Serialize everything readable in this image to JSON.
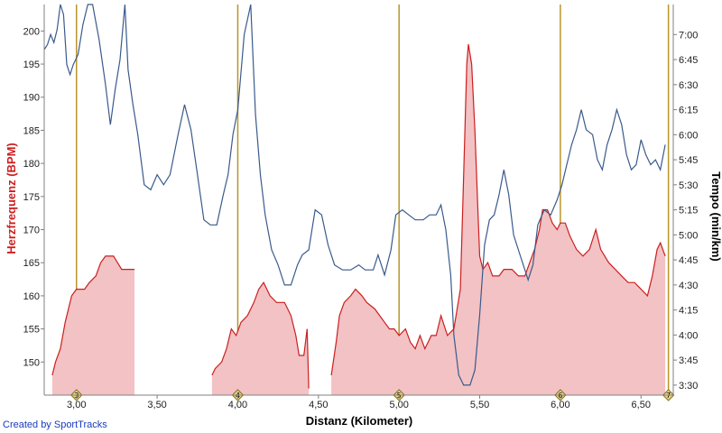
{
  "credit": "Created by SportTracks",
  "chart_data": {
    "type": "line",
    "title": "",
    "xlabel": "Distanz (Kilometer)",
    "ylabel_left": "Herzfrequenz (BPM)",
    "ylabel_right": "Tempo (min/km)",
    "xlim": [
      2.8,
      6.7
    ],
    "ylim_left": [
      145,
      204
    ],
    "ylim_right": [
      3.4,
      7.3
    ],
    "grid": false,
    "x_ticks": [
      {
        "value": 3.0,
        "label": "3,00"
      },
      {
        "value": 3.5,
        "label": "3,50"
      },
      {
        "value": 4.0,
        "label": "4,00"
      },
      {
        "value": 4.5,
        "label": "4,50"
      },
      {
        "value": 5.0,
        "label": "5,00"
      },
      {
        "value": 5.5,
        "label": "5,50"
      },
      {
        "value": 6.0,
        "label": "6,00"
      },
      {
        "value": 6.5,
        "label": "6,50"
      }
    ],
    "y_left_ticks": [
      150,
      155,
      160,
      165,
      170,
      175,
      180,
      185,
      190,
      195,
      200
    ],
    "y_right_ticks": [
      {
        "value": 3.5,
        "label": "3:30"
      },
      {
        "value": 3.75,
        "label": "3:45"
      },
      {
        "value": 4.0,
        "label": "4:00"
      },
      {
        "value": 4.25,
        "label": "4:15"
      },
      {
        "value": 4.5,
        "label": "4:30"
      },
      {
        "value": 4.75,
        "label": "4:45"
      },
      {
        "value": 5.0,
        "label": "5:00"
      },
      {
        "value": 5.25,
        "label": "5:15"
      },
      {
        "value": 5.5,
        "label": "5:30"
      },
      {
        "value": 5.75,
        "label": "5:45"
      },
      {
        "value": 6.0,
        "label": "6:00"
      },
      {
        "value": 6.25,
        "label": "6:15"
      },
      {
        "value": 6.5,
        "label": "6:30"
      },
      {
        "value": 6.75,
        "label": "6:45"
      },
      {
        "value": 7.0,
        "label": "7:00"
      }
    ],
    "laps": [
      {
        "x": 3.0,
        "label": "3"
      },
      {
        "x": 4.0,
        "label": "4"
      },
      {
        "x": 5.0,
        "label": "5"
      },
      {
        "x": 6.0,
        "label": "6"
      },
      {
        "x": 6.67,
        "label": "7"
      }
    ],
    "colors": {
      "heart_rate": "#cc1f1f",
      "heart_rate_fill": "#f2c2c4",
      "pace": "#3a5a8c",
      "lap_line": "#b8942a"
    },
    "series": [
      {
        "name": "Herzfrequenz (BPM)",
        "axis": "left",
        "segments": [
          [
            [
              2.85,
              148
            ],
            [
              2.87,
              150
            ],
            [
              2.9,
              152
            ],
            [
              2.93,
              156
            ],
            [
              2.95,
              158
            ],
            [
              2.97,
              160
            ],
            [
              3.0,
              161
            ],
            [
              3.05,
              161
            ],
            [
              3.08,
              162
            ],
            [
              3.12,
              163
            ],
            [
              3.15,
              165
            ],
            [
              3.18,
              166
            ],
            [
              3.23,
              166
            ],
            [
              3.28,
              164
            ],
            [
              3.36,
              164
            ]
          ],
          [
            [
              3.84,
              148
            ],
            [
              3.86,
              149
            ],
            [
              3.9,
              150
            ],
            [
              3.93,
              152
            ],
            [
              3.96,
              155
            ],
            [
              3.99,
              154
            ],
            [
              4.02,
              156
            ],
            [
              4.06,
              157
            ],
            [
              4.1,
              159
            ],
            [
              4.13,
              161
            ],
            [
              4.16,
              162
            ],
            [
              4.2,
              160
            ],
            [
              4.24,
              159
            ],
            [
              4.29,
              159
            ],
            [
              4.33,
              157
            ],
            [
              4.36,
              154
            ],
            [
              4.38,
              151
            ],
            [
              4.41,
              151
            ],
            [
              4.43,
              155
            ],
            [
              4.44,
              146
            ]
          ],
          [
            [
              4.58,
              148
            ],
            [
              4.61,
              153
            ],
            [
              4.63,
              157
            ],
            [
              4.66,
              159
            ],
            [
              4.7,
              160
            ],
            [
              4.73,
              161
            ],
            [
              4.77,
              160
            ],
            [
              4.8,
              159
            ],
            [
              4.85,
              158
            ],
            [
              4.88,
              157
            ],
            [
              4.91,
              156
            ],
            [
              4.94,
              155
            ],
            [
              4.97,
              155
            ],
            [
              5.0,
              154
            ],
            [
              5.04,
              155
            ],
            [
              5.07,
              153
            ],
            [
              5.1,
              152
            ],
            [
              5.13,
              154
            ],
            [
              5.16,
              152
            ],
            [
              5.2,
              154
            ],
            [
              5.23,
              154
            ],
            [
              5.26,
              157
            ],
            [
              5.3,
              154
            ],
            [
              5.34,
              155
            ],
            [
              5.38,
              161
            ],
            [
              5.4,
              178
            ],
            [
              5.42,
              195
            ],
            [
              5.43,
              198
            ],
            [
              5.45,
              195
            ],
            [
              5.47,
              185
            ],
            [
              5.49,
              172
            ],
            [
              5.5,
              166
            ],
            [
              5.52,
              164
            ],
            [
              5.55,
              165
            ],
            [
              5.58,
              163
            ],
            [
              5.62,
              163
            ],
            [
              5.65,
              164
            ],
            [
              5.7,
              164
            ],
            [
              5.74,
              163
            ],
            [
              5.78,
              163
            ],
            [
              5.81,
              165
            ],
            [
              5.84,
              167
            ],
            [
              5.87,
              170
            ],
            [
              5.89,
              173
            ],
            [
              5.92,
              173
            ],
            [
              5.95,
              171
            ],
            [
              5.98,
              170
            ],
            [
              6.0,
              171
            ],
            [
              6.03,
              171
            ],
            [
              6.06,
              169
            ],
            [
              6.1,
              167
            ],
            [
              6.14,
              166
            ],
            [
              6.18,
              167
            ],
            [
              6.22,
              170
            ],
            [
              6.25,
              167
            ],
            [
              6.3,
              165
            ],
            [
              6.34,
              164
            ],
            [
              6.38,
              163
            ],
            [
              6.42,
              162
            ],
            [
              6.46,
              162
            ],
            [
              6.5,
              161
            ],
            [
              6.54,
              160
            ],
            [
              6.57,
              163
            ],
            [
              6.6,
              167
            ],
            [
              6.62,
              168
            ],
            [
              6.65,
              166
            ]
          ]
        ]
      },
      {
        "name": "Tempo (min/km)",
        "axis": "right",
        "points": [
          [
            2.8,
            6.85
          ],
          [
            2.82,
            6.9
          ],
          [
            2.84,
            7.0
          ],
          [
            2.86,
            6.92
          ],
          [
            2.88,
            7.05
          ],
          [
            2.9,
            7.3
          ],
          [
            2.92,
            7.2
          ],
          [
            2.94,
            6.7
          ],
          [
            2.96,
            6.6
          ],
          [
            2.98,
            6.7
          ],
          [
            3.01,
            6.8
          ],
          [
            3.04,
            7.1
          ],
          [
            3.07,
            7.3
          ],
          [
            3.1,
            7.3
          ],
          [
            3.14,
            6.95
          ],
          [
            3.18,
            6.5
          ],
          [
            3.21,
            6.1
          ],
          [
            3.24,
            6.45
          ],
          [
            3.27,
            6.75
          ],
          [
            3.3,
            7.3
          ],
          [
            3.32,
            6.65
          ],
          [
            3.35,
            6.3
          ],
          [
            3.38,
            6.0
          ],
          [
            3.42,
            5.5
          ],
          [
            3.46,
            5.45
          ],
          [
            3.5,
            5.6
          ],
          [
            3.54,
            5.5
          ],
          [
            3.58,
            5.6
          ],
          [
            3.63,
            6.0
          ],
          [
            3.67,
            6.3
          ],
          [
            3.71,
            6.05
          ],
          [
            3.75,
            5.6
          ],
          [
            3.79,
            5.15
          ],
          [
            3.83,
            5.1
          ],
          [
            3.87,
            5.1
          ],
          [
            3.91,
            5.4
          ],
          [
            3.94,
            5.6
          ],
          [
            3.97,
            6.0
          ],
          [
            4.0,
            6.25
          ],
          [
            4.04,
            7.0
          ],
          [
            4.08,
            7.3
          ],
          [
            4.11,
            6.2
          ],
          [
            4.14,
            5.6
          ],
          [
            4.17,
            5.2
          ],
          [
            4.21,
            4.85
          ],
          [
            4.25,
            4.7
          ],
          [
            4.29,
            4.5
          ],
          [
            4.33,
            4.5
          ],
          [
            4.37,
            4.7
          ],
          [
            4.4,
            4.8
          ],
          [
            4.44,
            4.85
          ],
          [
            4.48,
            5.25
          ],
          [
            4.52,
            5.2
          ],
          [
            4.56,
            4.9
          ],
          [
            4.6,
            4.7
          ],
          [
            4.65,
            4.65
          ],
          [
            4.7,
            4.65
          ],
          [
            4.75,
            4.7
          ],
          [
            4.79,
            4.65
          ],
          [
            4.84,
            4.65
          ],
          [
            4.87,
            4.8
          ],
          [
            4.91,
            4.6
          ],
          [
            4.95,
            4.85
          ],
          [
            4.98,
            5.2
          ],
          [
            5.02,
            5.25
          ],
          [
            5.06,
            5.2
          ],
          [
            5.1,
            5.15
          ],
          [
            5.15,
            5.15
          ],
          [
            5.19,
            5.2
          ],
          [
            5.23,
            5.2
          ],
          [
            5.26,
            5.3
          ],
          [
            5.29,
            5.05
          ],
          [
            5.32,
            4.6
          ],
          [
            5.34,
            4.0
          ],
          [
            5.37,
            3.6
          ],
          [
            5.4,
            3.5
          ],
          [
            5.44,
            3.5
          ],
          [
            5.47,
            3.65
          ],
          [
            5.5,
            4.2
          ],
          [
            5.53,
            4.9
          ],
          [
            5.56,
            5.15
          ],
          [
            5.59,
            5.2
          ],
          [
            5.62,
            5.4
          ],
          [
            5.65,
            5.65
          ],
          [
            5.68,
            5.4
          ],
          [
            5.71,
            5.0
          ],
          [
            5.74,
            4.85
          ],
          [
            5.77,
            4.7
          ],
          [
            5.8,
            4.55
          ],
          [
            5.83,
            4.7
          ],
          [
            5.86,
            5.1
          ],
          [
            5.9,
            5.25
          ],
          [
            5.94,
            5.2
          ],
          [
            5.98,
            5.35
          ],
          [
            6.01,
            5.5
          ],
          [
            6.04,
            5.7
          ],
          [
            6.07,
            5.9
          ],
          [
            6.1,
            6.05
          ],
          [
            6.13,
            6.25
          ],
          [
            6.16,
            6.05
          ],
          [
            6.2,
            6.0
          ],
          [
            6.23,
            5.75
          ],
          [
            6.26,
            5.65
          ],
          [
            6.29,
            5.9
          ],
          [
            6.32,
            6.05
          ],
          [
            6.35,
            6.25
          ],
          [
            6.38,
            6.1
          ],
          [
            6.41,
            5.8
          ],
          [
            6.44,
            5.65
          ],
          [
            6.47,
            5.7
          ],
          [
            6.5,
            5.95
          ],
          [
            6.53,
            5.8
          ],
          [
            6.56,
            5.7
          ],
          [
            6.59,
            5.75
          ],
          [
            6.62,
            5.65
          ],
          [
            6.65,
            5.9
          ]
        ]
      }
    ]
  }
}
